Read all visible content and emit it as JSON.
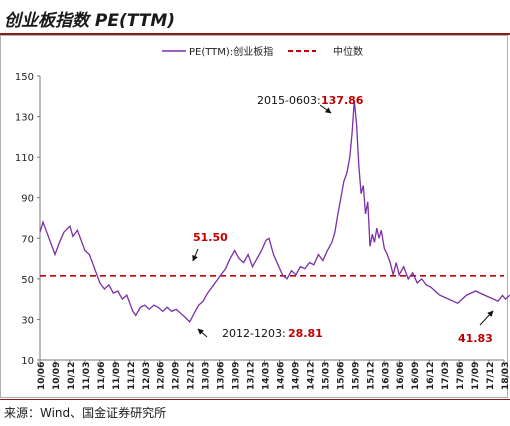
{
  "header": {
    "title": "创业板指数 PE(TTM)"
  },
  "footer": {
    "source": "来源：Wind、国金证券研究所"
  },
  "chart_data": {
    "type": "line",
    "title": "创业板指数 PE(TTM)",
    "legend": {
      "placement": "top-center",
      "entries": [
        "PE(TTM):创业板指",
        "中位数"
      ]
    },
    "colors": {
      "series": "#7b2fa8",
      "median": "#c00000",
      "value_text": "#c00000"
    },
    "ylim": [
      10,
      150
    ],
    "yticks": [
      10,
      30,
      50,
      70,
      90,
      110,
      130,
      150
    ],
    "xticks": [
      "10/06",
      "10/09",
      "10/12",
      "11/03",
      "11/06",
      "11/09",
      "11/12",
      "12/03",
      "12/06",
      "12/09",
      "12/12",
      "13/03",
      "13/06",
      "13/09",
      "13/12",
      "14/03",
      "14/06",
      "14/09",
      "14/12",
      "15/03",
      "15/06",
      "15/09",
      "15/12",
      "16/03",
      "16/06",
      "16/09",
      "16/12",
      "17/03",
      "17/06",
      "17/09",
      "17/12",
      "18/03"
    ],
    "grid": false,
    "median": 51.5,
    "series": [
      {
        "name": "PE(TTM):创业板指",
        "points": [
          [
            0,
            73
          ],
          [
            0.2,
            78
          ],
          [
            0.5,
            72
          ],
          [
            0.8,
            66
          ],
          [
            1.0,
            62
          ],
          [
            1.3,
            68
          ],
          [
            1.6,
            73
          ],
          [
            2.0,
            76
          ],
          [
            2.2,
            71
          ],
          [
            2.5,
            74
          ],
          [
            2.8,
            68
          ],
          [
            3.0,
            64
          ],
          [
            3.3,
            62
          ],
          [
            3.6,
            56
          ],
          [
            3.8,
            52
          ],
          [
            4.0,
            48
          ],
          [
            4.3,
            45
          ],
          [
            4.6,
            47
          ],
          [
            4.9,
            43
          ],
          [
            5.2,
            44
          ],
          [
            5.5,
            40
          ],
          [
            5.8,
            42
          ],
          [
            6.0,
            38
          ],
          [
            6.2,
            34
          ],
          [
            6.4,
            32
          ],
          [
            6.7,
            36
          ],
          [
            7.0,
            37
          ],
          [
            7.3,
            35
          ],
          [
            7.6,
            37
          ],
          [
            7.9,
            36
          ],
          [
            8.2,
            34
          ],
          [
            8.5,
            36
          ],
          [
            8.8,
            34
          ],
          [
            9.1,
            35
          ],
          [
            9.4,
            33
          ],
          [
            9.7,
            31
          ],
          [
            10.0,
            28.81
          ],
          [
            10.3,
            33
          ],
          [
            10.6,
            37
          ],
          [
            10.9,
            39
          ],
          [
            11.2,
            43
          ],
          [
            11.5,
            46
          ],
          [
            11.8,
            49
          ],
          [
            12.1,
            52
          ],
          [
            12.4,
            55
          ],
          [
            12.7,
            60
          ],
          [
            13.0,
            64
          ],
          [
            13.3,
            60
          ],
          [
            13.6,
            58
          ],
          [
            13.9,
            62
          ],
          [
            14.2,
            56
          ],
          [
            14.5,
            60
          ],
          [
            14.8,
            64
          ],
          [
            15.1,
            69
          ],
          [
            15.3,
            70
          ],
          [
            15.6,
            62
          ],
          [
            15.9,
            57
          ],
          [
            16.2,
            52
          ],
          [
            16.5,
            50
          ],
          [
            16.8,
            54
          ],
          [
            17.1,
            52
          ],
          [
            17.4,
            56
          ],
          [
            17.7,
            55
          ],
          [
            18.0,
            58
          ],
          [
            18.3,
            57
          ],
          [
            18.6,
            62
          ],
          [
            18.9,
            59
          ],
          [
            19.2,
            64
          ],
          [
            19.5,
            68
          ],
          [
            19.7,
            73
          ],
          [
            19.9,
            82
          ],
          [
            20.1,
            90
          ],
          [
            20.3,
            98
          ],
          [
            20.5,
            102
          ],
          [
            20.7,
            110
          ],
          [
            20.85,
            122
          ],
          [
            21.0,
            137.86
          ],
          [
            21.15,
            126
          ],
          [
            21.3,
            106
          ],
          [
            21.45,
            92
          ],
          [
            21.6,
            96
          ],
          [
            21.75,
            82
          ],
          [
            21.9,
            88
          ],
          [
            22.05,
            66
          ],
          [
            22.2,
            72
          ],
          [
            22.35,
            68
          ],
          [
            22.5,
            75
          ],
          [
            22.65,
            70
          ],
          [
            22.8,
            74
          ],
          [
            23.0,
            65
          ],
          [
            23.2,
            62
          ],
          [
            23.4,
            58
          ],
          [
            23.6,
            52
          ],
          [
            23.8,
            58
          ],
          [
            24.0,
            52
          ],
          [
            24.3,
            56
          ],
          [
            24.6,
            50
          ],
          [
            24.9,
            53
          ],
          [
            25.2,
            48
          ],
          [
            25.5,
            50
          ],
          [
            25.8,
            47
          ],
          [
            26.1,
            46
          ],
          [
            26.4,
            44
          ],
          [
            26.7,
            42
          ],
          [
            27.0,
            41
          ],
          [
            27.3,
            40
          ],
          [
            27.6,
            39
          ],
          [
            27.9,
            38
          ],
          [
            28.2,
            40
          ],
          [
            28.5,
            42
          ],
          [
            28.8,
            43
          ],
          [
            29.1,
            44
          ],
          [
            29.4,
            43
          ],
          [
            29.7,
            42
          ],
          [
            30.0,
            41
          ],
          [
            30.3,
            40
          ],
          [
            30.6,
            39
          ],
          [
            30.9,
            41.83
          ],
          [
            31.1,
            40
          ],
          [
            31.4,
            42
          ],
          [
            31.7,
            42
          ]
        ]
      }
    ],
    "annotations": [
      {
        "label": "2015-0603:",
        "value": "137.86"
      },
      {
        "label": "",
        "value": "51.50"
      },
      {
        "label": "2012-1203:",
        "value": "28.81"
      },
      {
        "label": "",
        "value": "41.83"
      }
    ]
  }
}
